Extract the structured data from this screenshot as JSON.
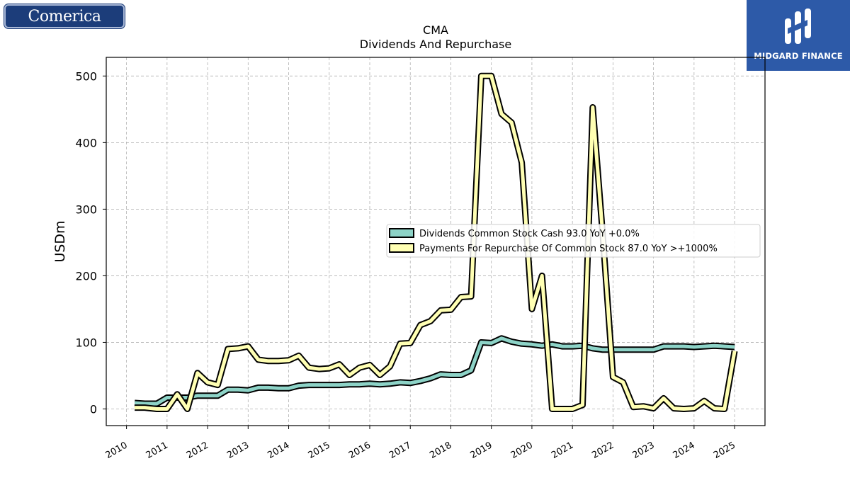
{
  "brand": {
    "left_logo_text": "Comerica",
    "right_logo_text": "MIDGARD FINANCE"
  },
  "colors": {
    "dividends": "#8dd3c7",
    "repurchase": "#ffffb3",
    "outline": "#000000",
    "grid": "#b0b0b0"
  },
  "chart_data": {
    "type": "line",
    "title": "CMA",
    "subtitle": "Dividends And Repurchase",
    "ylabel": "USDm",
    "xlabel": "",
    "ylim": [
      -25,
      528
    ],
    "xlim": [
      2009.5,
      2025.75
    ],
    "yticks": [
      0,
      100,
      200,
      300,
      400,
      500
    ],
    "xticks": [
      "2010",
      "2011",
      "2012",
      "2013",
      "2014",
      "2015",
      "2016",
      "2017",
      "2018",
      "2019",
      "2020",
      "2021",
      "2022",
      "2023",
      "2024",
      "2025"
    ],
    "grid": true,
    "legend_position": "center-right",
    "series": [
      {
        "name": "Dividends Common Stock Cash  93.0 YoY +0.0%",
        "color": "#8dd3c7",
        "x": [
          2010.2,
          2010.45,
          2010.75,
          2011.0,
          2011.25,
          2011.5,
          2011.75,
          2012.0,
          2012.25,
          2012.5,
          2012.75,
          2013.0,
          2013.25,
          2013.5,
          2013.75,
          2014.0,
          2014.25,
          2014.5,
          2014.75,
          2015.0,
          2015.25,
          2015.5,
          2015.75,
          2016.0,
          2016.25,
          2016.5,
          2016.75,
          2017.0,
          2017.25,
          2017.5,
          2017.75,
          2018.0,
          2018.25,
          2018.5,
          2018.75,
          2019.0,
          2019.25,
          2019.5,
          2019.75,
          2020.0,
          2020.25,
          2020.5,
          2020.75,
          2021.0,
          2021.25,
          2021.5,
          2021.75,
          2022.0,
          2022.25,
          2022.5,
          2022.75,
          2023.0,
          2023.25,
          2023.5,
          2023.75,
          2024.0,
          2024.25,
          2024.5,
          2024.75,
          2025.0
        ],
        "values": [
          9,
          8,
          8,
          17,
          17,
          17,
          20,
          20,
          20,
          29,
          29,
          28,
          32,
          32,
          31,
          31,
          35,
          36,
          36,
          36,
          36,
          37,
          37,
          38,
          37,
          38,
          40,
          39,
          42,
          46,
          52,
          51,
          51,
          58,
          100,
          99,
          106,
          101,
          98,
          97,
          95,
          97,
          94,
          94,
          95,
          91,
          89,
          89,
          89,
          89,
          89,
          89,
          94,
          94,
          94,
          93,
          94,
          95,
          94,
          93
        ]
      },
      {
        "name": "Payments For Repurchase Of Common Stock  87.0 YoY >+1000%",
        "color": "#ffffb3",
        "x": [
          2010.2,
          2010.45,
          2010.75,
          2011.0,
          2011.25,
          2011.5,
          2011.75,
          2012.0,
          2012.25,
          2012.5,
          2012.75,
          2013.0,
          2013.25,
          2013.5,
          2013.75,
          2014.0,
          2014.25,
          2014.5,
          2014.75,
          2015.0,
          2015.25,
          2015.5,
          2015.75,
          2016.0,
          2016.25,
          2016.5,
          2016.75,
          2017.0,
          2017.25,
          2017.5,
          2017.75,
          2018.0,
          2018.25,
          2018.5,
          2018.75,
          2019.0,
          2019.25,
          2019.5,
          2019.75,
          2020.0,
          2020.25,
          2020.5,
          2020.75,
          2021.0,
          2021.25,
          2021.5,
          2021.75,
          2022.0,
          2022.25,
          2022.5,
          2022.75,
          2023.0,
          2023.25,
          2023.5,
          2023.75,
          2024.0,
          2024.25,
          2024.5,
          2024.75,
          2025.0
        ],
        "values": [
          2,
          2,
          0,
          0,
          22,
          0,
          54,
          40,
          36,
          90,
          91,
          94,
          74,
          72,
          72,
          73,
          80,
          62,
          60,
          61,
          67,
          51,
          62,
          66,
          51,
          64,
          98,
          99,
          126,
          132,
          148,
          149,
          168,
          169,
          500,
          500,
          443,
          430,
          370,
          150,
          200,
          0,
          0,
          0,
          6,
          453,
          259,
          48,
          40,
          3,
          4,
          1,
          16,
          1,
          0,
          1,
          12,
          1,
          0,
          87
        ]
      }
    ]
  }
}
